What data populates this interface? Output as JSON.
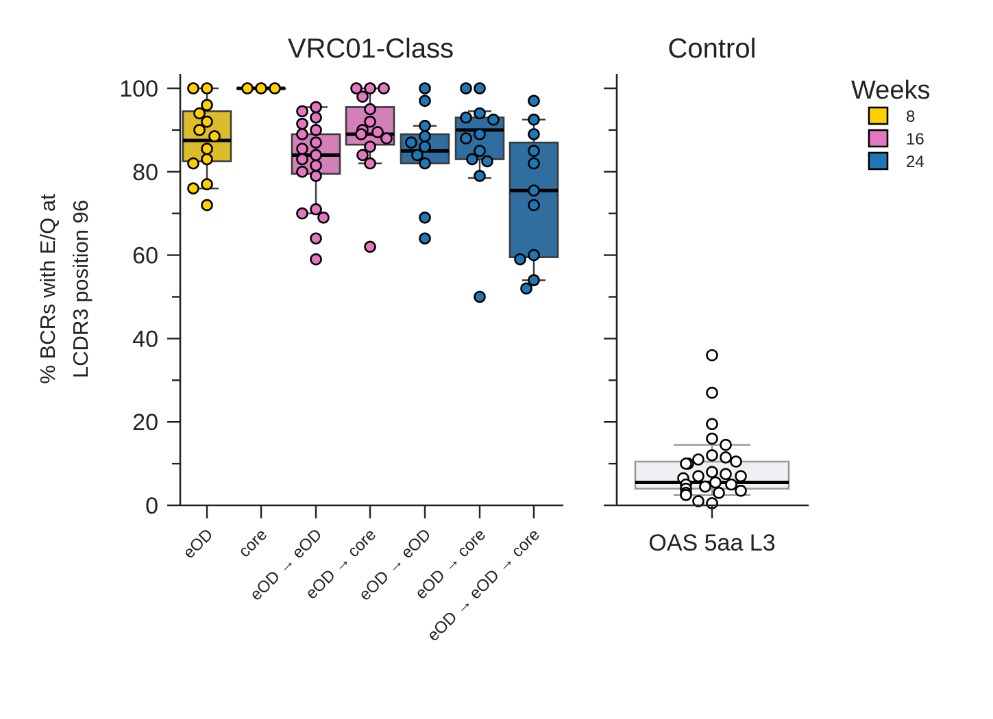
{
  "chart_data": [
    {
      "type": "box",
      "title": "VRC01-Class",
      "ylabel": "% BCRs with E/Q at\nLCDR3 position 96",
      "ylim": [
        0,
        103
      ],
      "yticks": [
        0,
        20,
        40,
        60,
        80,
        100
      ],
      "grid": false,
      "categories": [
        "eOD",
        "core",
        "eOD → eOD",
        "eOD → core",
        "eOD → eOD",
        "eOD → core",
        "eOD → eOD → core"
      ],
      "weeks": [
        "8",
        "8",
        "16",
        "16",
        "24",
        "24",
        "24"
      ],
      "boxes": [
        {
          "q1": 82.5,
          "median": 87.5,
          "q3": 94.5,
          "whisker_low": 76,
          "whisker_high": 100
        },
        {
          "q1": 100,
          "median": 100,
          "q3": 100,
          "whisker_low": 100,
          "whisker_high": 100
        },
        {
          "q1": 79.5,
          "median": 84,
          "q3": 89,
          "whisker_low": 70,
          "whisker_high": 95.5
        },
        {
          "q1": 86.5,
          "median": 89,
          "q3": 95.5,
          "whisker_low": 82,
          "whisker_high": 100
        },
        {
          "q1": 82,
          "median": 85,
          "q3": 89,
          "whisker_low": 82,
          "whisker_high": 91
        },
        {
          "q1": 83,
          "median": 90,
          "q3": 93,
          "whisker_low": 78.5,
          "whisker_high": 94.5
        },
        {
          "q1": 59.5,
          "median": 75.5,
          "q3": 87,
          "whisker_low": 54,
          "whisker_high": 92.5
        }
      ],
      "points": [
        [
          100,
          100,
          96,
          94,
          92,
          90,
          88.5,
          85.5,
          83,
          82,
          77,
          76,
          72
        ],
        [
          100,
          100,
          100
        ],
        [
          95.5,
          94.5,
          93,
          91.5,
          90,
          89,
          87,
          85.5,
          84,
          83,
          81.5,
          80,
          79,
          71,
          70,
          69,
          64,
          59
        ],
        [
          100,
          100,
          100,
          98,
          95,
          92,
          90,
          89.5,
          89,
          88,
          86,
          84,
          82,
          62
        ],
        [
          100,
          97,
          91,
          88.5,
          87,
          86,
          84,
          82,
          69,
          64
        ],
        [
          100,
          100,
          94,
          93,
          92.5,
          89,
          88,
          85,
          83,
          82.5,
          79,
          50
        ],
        [
          97,
          92.5,
          89,
          85,
          82,
          75.5,
          72,
          60,
          59,
          54,
          52
        ]
      ]
    },
    {
      "type": "box",
      "title": "Control",
      "ylim": [
        0,
        103
      ],
      "grid": false,
      "categories": [
        "OAS 5aa L3"
      ],
      "boxes": [
        {
          "q1": 4,
          "median": 5.5,
          "q3": 10.5,
          "whisker_low": 2.5,
          "whisker_high": 14.5
        }
      ],
      "points": [
        [
          36,
          27,
          19.5,
          16,
          14.5,
          12,
          11.5,
          11,
          10.5,
          10,
          10,
          8,
          7.5,
          7,
          7,
          6.5,
          5.5,
          5,
          5,
          4.5,
          4,
          3.5,
          3,
          3,
          2.5,
          2.5,
          1,
          0.5
        ]
      ]
    }
  ],
  "legend": {
    "title": "Weeks",
    "position": "upper-right outside",
    "items": [
      {
        "label": "8",
        "color": "#FFD000"
      },
      {
        "label": "16",
        "color": "#E377C2"
      },
      {
        "label": "24",
        "color": "#1F77B4"
      }
    ]
  },
  "colors": {
    "8": "#FFD000",
    "16": "#E377C2",
    "24": "#1F77B4",
    "box_8": "#DCBC2A",
    "box_16": "#D27FBA",
    "box_24": "#2F6E9E",
    "control_box": "#F0EFF4",
    "control_point": "#FFFFFF"
  }
}
